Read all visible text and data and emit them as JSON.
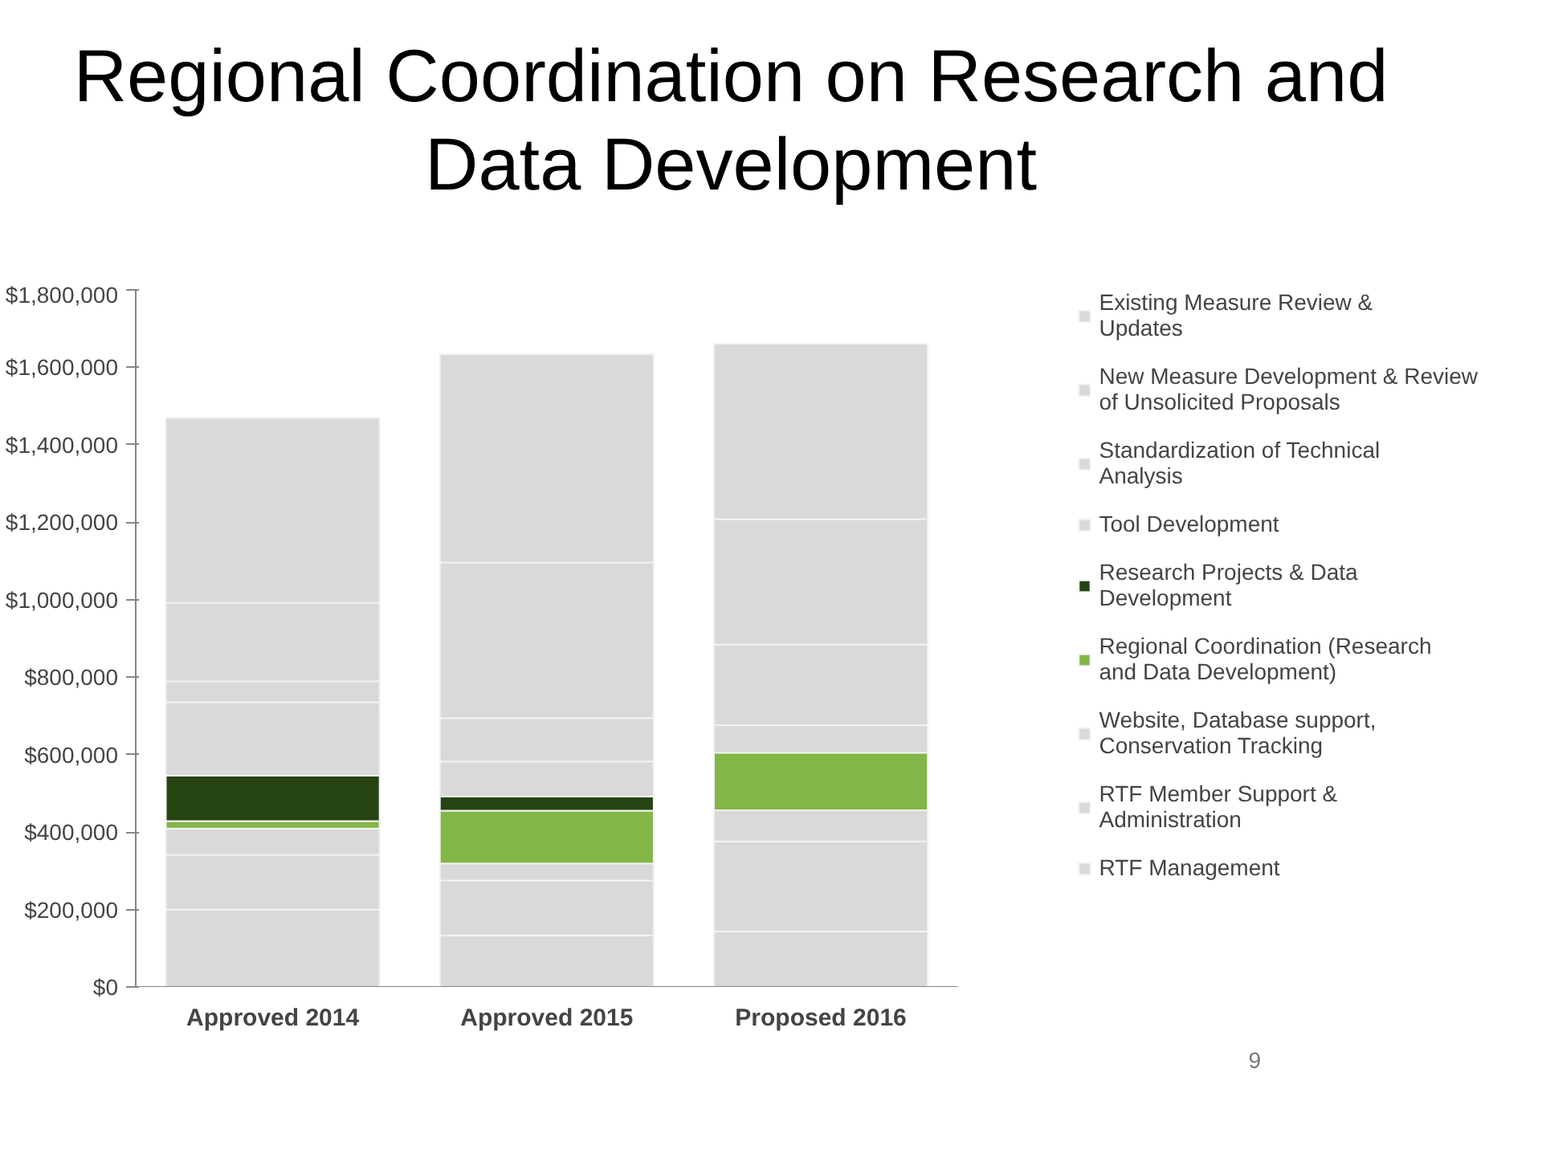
{
  "chart_data": {
    "type": "bar",
    "stacked": true,
    "title": "Regional Coordination on Research and Data Development",
    "categories": [
      "Approved 2014",
      "Approved 2015",
      "Proposed 2016"
    ],
    "series": [
      {
        "name": "RTF Management",
        "color": "#d9d9d9",
        "values": [
          200000,
          133000,
          143000
        ]
      },
      {
        "name": "RTF Member Support & Administration",
        "color": "#d9d9d9",
        "values": [
          141000,
          142000,
          233000
        ]
      },
      {
        "name": "Website, Database support, Conservation Tracking",
        "color": "#d9d9d9",
        "values": [
          68000,
          44000,
          80000
        ]
      },
      {
        "name": "Regional Coordination (Research and Data Development)",
        "color": "#82b646",
        "values": [
          19000,
          136000,
          149000
        ]
      },
      {
        "name": "Research Projects & Data Development",
        "color": "#254412",
        "values": [
          118000,
          37000,
          0
        ]
      },
      {
        "name": "Tool Development",
        "color": "#d9d9d9",
        "values": [
          189000,
          90000,
          71000
        ]
      },
      {
        "name": "Standardization of Technical Analysis",
        "color": "#d9d9d9",
        "values": [
          54000,
          112000,
          208000
        ]
      },
      {
        "name": "New Measure Development & Review of Unsolicited Proposals",
        "color": "#d9d9d9",
        "values": [
          203000,
          402000,
          324000
        ]
      },
      {
        "name": "Existing Measure Review & Updates",
        "color": "#d9d9d9",
        "values": [
          478000,
          538000,
          453000
        ]
      }
    ],
    "ylim": [
      0,
      1800000
    ],
    "yticks": [
      {
        "value": 0,
        "label": "$0"
      },
      {
        "value": 200000,
        "label": "$200,000"
      },
      {
        "value": 400000,
        "label": "$400,000"
      },
      {
        "value": 600000,
        "label": "$600,000"
      },
      {
        "value": 800000,
        "label": "$800,000"
      },
      {
        "value": 1000000,
        "label": "$1,000,000"
      },
      {
        "value": 1200000,
        "label": "$1,200,000"
      },
      {
        "value": 1400000,
        "label": "$1,400,000"
      },
      {
        "value": 1600000,
        "label": "$1,600,000"
      },
      {
        "value": 1800000,
        "label": "$1,800,000"
      }
    ],
    "grid": false,
    "legend": "right",
    "annotations": [
      "9"
    ]
  }
}
